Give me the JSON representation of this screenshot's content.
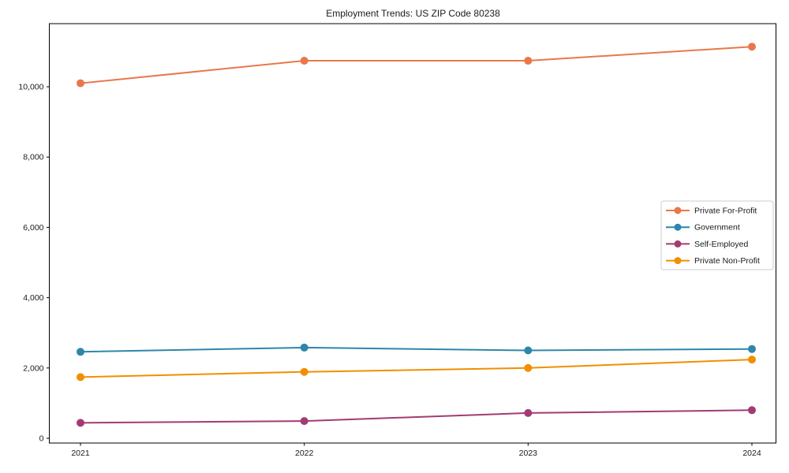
{
  "chart_data": {
    "type": "line",
    "title": "Employment Trends: US ZIP Code 80238",
    "xlabel": "",
    "ylabel": "",
    "x": [
      2021,
      2022,
      2023,
      2024
    ],
    "x_tick_labels": [
      "2021",
      "2022",
      "2023",
      "2024"
    ],
    "y_ticks": [
      0,
      2000,
      4000,
      6000,
      8000,
      10000
    ],
    "y_tick_labels": [
      "0",
      "2,000",
      "4,000",
      "6,000",
      "8,000",
      "10,000"
    ],
    "ylim": [
      -135,
      11795
    ],
    "grid": false,
    "marker": "circle",
    "legend_position": "center-right",
    "series": [
      {
        "name": "Private For-Profit",
        "color": "#E8784B",
        "values": [
          10100,
          10740,
          10740,
          11140
        ]
      },
      {
        "name": "Government",
        "color": "#2E86AB",
        "values": [
          2460,
          2580,
          2500,
          2540
        ]
      },
      {
        "name": "Self-Employed",
        "color": "#A23B72",
        "values": [
          440,
          490,
          720,
          800
        ]
      },
      {
        "name": "Private Non-Profit",
        "color": "#F18F01",
        "values": [
          1740,
          1890,
          2000,
          2240
        ]
      }
    ],
    "colors": {
      "axis": "#000000",
      "text": "#1a1a1a",
      "legend_border": "#cccccc",
      "legend_background": "#ffffff"
    }
  }
}
